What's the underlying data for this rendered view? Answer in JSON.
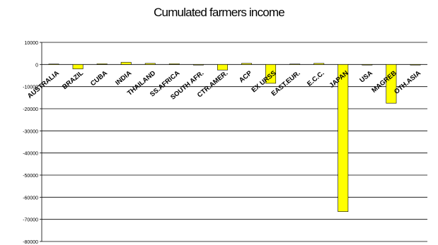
{
  "chart_data": {
    "type": "bar",
    "title": "Cumulated farmers income",
    "xlabel": "",
    "ylabel": "",
    "categories": [
      "AUSTRALIA",
      "BRAZIL",
      "CUBA",
      "INDIA",
      "THAILAND",
      "SS.AFRICA",
      "SOUTH AFR.",
      "CTR.AMER.",
      "ACP",
      "EX URSS",
      "EAST.EUR.",
      "E.C.C.",
      "JAPAN",
      "USA",
      "MAGREB",
      "OTH.ASIA"
    ],
    "series": [
      {
        "name": "",
        "values": [
          200,
          -2000,
          300,
          1000,
          500,
          300,
          -200,
          -2500,
          500,
          -8500,
          200,
          500,
          -66500,
          -200,
          -17500,
          -100
        ]
      }
    ],
    "ylim": [
      -80000,
      10000
    ],
    "yticks": [
      10000,
      0,
      -10000,
      -20000,
      -30000,
      -40000,
      -50000,
      -60000,
      -70000,
      -80000
    ],
    "grid": true,
    "legend": "none",
    "bar_color": "#ffff00",
    "bar_stroke": "#000000",
    "grid_color": "#000000"
  }
}
